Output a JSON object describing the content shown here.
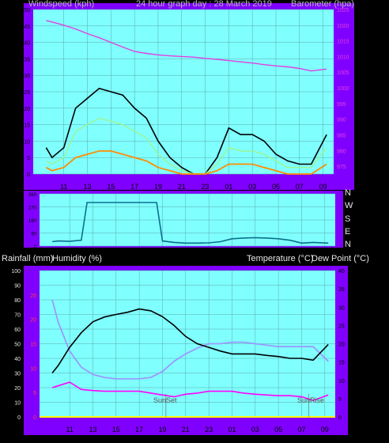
{
  "header": {
    "windspeed_label": "Windspeed (kph)",
    "title": "24 hour graph day : 28 March 2019",
    "barometer_label": "Barometer (hpa)"
  },
  "middle_header": {
    "rain_label": "Rainfall (mm)",
    "humidity_label": "Humidity (%)",
    "temp_label": "Temperature (°C)",
    "dew_label": "Dew Point (°C)"
  },
  "compass": [
    "N",
    "W",
    "S",
    "E",
    "N"
  ],
  "annotations": {
    "sunset": "SunSet",
    "sunrise": "SunRise"
  },
  "colors": {
    "frame": "#8000ff",
    "plot_bg": "#80ffff",
    "gust": "#000000",
    "wind_avg": "#98f59a",
    "wind_min": "#ff8c00",
    "barometer": "#e040e0",
    "direction": "#0b6f8a",
    "temperature": "#000000",
    "humidity": "#9a9aff",
    "dewpoint": "#ff00ff",
    "rain": "#ff0000",
    "rain_axis": "#ff4040"
  },
  "chart_data": [
    {
      "type": "line",
      "name": "wind-barometer",
      "x_ticks": [
        "11",
        "13",
        "15",
        "17",
        "19",
        "21",
        "23",
        "01",
        "03",
        "05",
        "07",
        "09"
      ],
      "x_hours": [
        9.5,
        10,
        11,
        12,
        13,
        14,
        15,
        16,
        17,
        18,
        19,
        20,
        21,
        22,
        23,
        24,
        25,
        26,
        27,
        28,
        29,
        30,
        31,
        32,
        33.3
      ],
      "ylabel": "Windspeed (kph)",
      "ylim": [
        0,
        50
      ],
      "left_ticks": [
        0,
        5,
        10,
        15,
        20,
        25,
        30,
        35,
        40,
        45,
        50
      ],
      "ylabel_right": "Barometer (hpa)",
      "ylim_right": [
        972.5,
        1025
      ],
      "right_ticks": [
        975,
        980,
        985,
        990,
        995,
        1000,
        1005,
        1010,
        1015,
        1020,
        1025
      ],
      "series": [
        {
          "name": "Gust",
          "values": [
            8,
            5,
            8,
            20,
            23,
            26,
            25,
            24,
            20,
            17,
            10,
            5,
            2,
            0,
            0,
            5,
            14,
            12,
            12,
            10,
            6,
            4,
            3,
            3,
            12
          ]
        },
        {
          "name": "Average",
          "values": [
            4,
            3,
            5,
            13,
            15,
            17,
            16,
            15,
            13,
            11,
            6,
            3,
            1,
            0,
            0,
            3,
            8,
            7,
            7,
            6,
            4,
            2,
            2,
            2,
            8
          ]
        },
        {
          "name": "Minimum",
          "values": [
            2,
            1,
            2,
            5,
            6,
            7,
            7,
            6,
            5,
            4,
            2,
            1,
            0,
            0,
            0,
            1,
            3,
            3,
            3,
            2,
            1,
            0,
            0,
            0,
            3
          ]
        },
        {
          "name": "Barometer",
          "axis": "right",
          "values": [
            1021.5,
            1021,
            1020,
            1018.8,
            1017.3,
            1016,
            1014.5,
            1013,
            1011.6,
            1011,
            1010.5,
            1010.2,
            1010,
            1009.8,
            1009.4,
            1009.1,
            1008.7,
            1008.3,
            1007.9,
            1007.4,
            1007,
            1006.7,
            1006.2,
            1005.4,
            1006
          ]
        }
      ]
    },
    {
      "type": "line",
      "name": "wind-direction",
      "x_hours": [
        9.5,
        10,
        11,
        12,
        12.5,
        13,
        14,
        15,
        16,
        17,
        18,
        18.5,
        19,
        20,
        21,
        22,
        23,
        24,
        25,
        26,
        27,
        28,
        29,
        30,
        31,
        32,
        33.3
      ],
      "ylim": [
        0,
        360
      ],
      "left_ticks": [
        0,
        90,
        180,
        270,
        360
      ],
      "series": [
        {
          "name": "Direction",
          "values": [
            30,
            35,
            32,
            40,
            300,
            300,
            300,
            300,
            300,
            300,
            300,
            300,
            35,
            25,
            20,
            20,
            22,
            30,
            50,
            55,
            58,
            55,
            50,
            40,
            20,
            25,
            20
          ]
        }
      ]
    },
    {
      "type": "line",
      "name": "temp-humidity-rain",
      "x_ticks": [
        "11",
        "13",
        "15",
        "17",
        "19",
        "21",
        "23",
        "01",
        "03",
        "05",
        "07",
        "09"
      ],
      "x_hours": [
        9.5,
        10,
        11,
        12,
        13,
        14,
        15,
        16,
        17,
        18,
        19,
        20,
        21,
        22,
        23,
        24,
        25,
        26,
        27,
        28,
        29,
        30,
        31,
        32,
        33.3
      ],
      "ylabel": "Humidity (%)",
      "ylim": [
        0,
        100
      ],
      "left_ticks": [
        0,
        10,
        20,
        30,
        40,
        50,
        60,
        70,
        80,
        90,
        100
      ],
      "ylabel_rain": "Rainfall (mm)",
      "rain_ticks": [
        0,
        5,
        10,
        15,
        20,
        25
      ],
      "ylabel_right": "Temperature (°C)",
      "ylim_right": [
        0,
        40
      ],
      "right_ticks": [
        0,
        5,
        10,
        15,
        20,
        25,
        30,
        35,
        40
      ],
      "series": [
        {
          "name": "Humidity",
          "values": [
            80,
            65,
            45,
            34,
            29,
            27,
            26,
            26,
            26,
            27,
            31,
            38,
            43,
            47,
            50,
            50,
            51,
            51,
            50,
            49,
            48,
            48,
            48,
            48,
            38
          ]
        },
        {
          "name": "Temperature",
          "axis": "right",
          "values": [
            12,
            14,
            19,
            23,
            26,
            27.3,
            28,
            28.6,
            29.5,
            29,
            27.4,
            25,
            22,
            20,
            19,
            18,
            17.2,
            17.2,
            17.2,
            16.8,
            16.5,
            16,
            16,
            15.5,
            19.8
          ]
        },
        {
          "name": "Dew Point",
          "axis": "right",
          "values": [
            8,
            8.5,
            9.5,
            7.5,
            7.2,
            7,
            7,
            7,
            7,
            6.5,
            6,
            5.5,
            6.2,
            6.5,
            7,
            7,
            7,
            6.5,
            6.2,
            6,
            5.8,
            5.8,
            5.5,
            4.5,
            6
          ]
        },
        {
          "name": "Rainfall",
          "values": [
            0,
            0,
            0,
            0,
            0,
            0,
            0,
            0,
            0,
            0,
            0,
            0,
            0,
            0,
            0,
            0,
            0,
            0,
            0,
            0,
            0,
            0,
            0,
            0,
            0
          ]
        }
      ]
    }
  ]
}
